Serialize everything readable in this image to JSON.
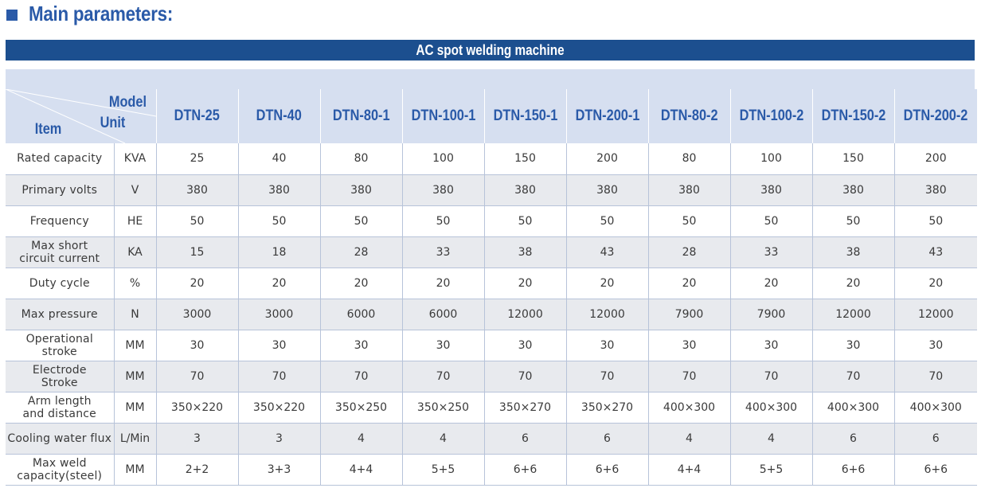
{
  "heading": "Main parameters:",
  "banner": "AC spot welding machine",
  "header": {
    "model_label": "Model",
    "unit_label": "Unit",
    "item_label": "Item",
    "models": [
      "DTN-25",
      "DTN-40",
      "DTN-80-1",
      "DTN-100-1",
      "DTN-150-1",
      "DTN-200-1",
      "DTN-80-2",
      "DTN-100-2",
      "DTN-150-2",
      "DTN-200-2"
    ]
  },
  "rows": [
    {
      "item": "Rated capacity",
      "unit": "KVA",
      "values": [
        "25",
        "40",
        "80",
        "100",
        "150",
        "200",
        "80",
        "100",
        "150",
        "200"
      ]
    },
    {
      "item": "Primary volts",
      "unit": "V",
      "values": [
        "380",
        "380",
        "380",
        "380",
        "380",
        "380",
        "380",
        "380",
        "380",
        "380"
      ]
    },
    {
      "item": "Frequency",
      "unit": "HE",
      "values": [
        "50",
        "50",
        "50",
        "50",
        "50",
        "50",
        "50",
        "50",
        "50",
        "50"
      ]
    },
    {
      "item": "Max short circuit current",
      "item_lines": [
        "Max short",
        "circuit current"
      ],
      "unit": "KA",
      "values": [
        "15",
        "18",
        "28",
        "33",
        "38",
        "43",
        "28",
        "33",
        "38",
        "43"
      ]
    },
    {
      "item": "Duty cycle",
      "unit": "%",
      "values": [
        "20",
        "20",
        "20",
        "20",
        "20",
        "20",
        "20",
        "20",
        "20",
        "20"
      ]
    },
    {
      "item": "Max pressure",
      "unit": "N",
      "values": [
        "3000",
        "3000",
        "6000",
        "6000",
        "12000",
        "12000",
        "7900",
        "7900",
        "12000",
        "12000"
      ]
    },
    {
      "item": "Operational stroke",
      "item_lines": [
        "Operational",
        "stroke"
      ],
      "unit": "MM",
      "values": [
        "30",
        "30",
        "30",
        "30",
        "30",
        "30",
        "30",
        "30",
        "30",
        "30"
      ]
    },
    {
      "item": "Electrode Stroke",
      "item_lines": [
        "Electrode",
        "Stroke"
      ],
      "unit": "MM",
      "values": [
        "70",
        "70",
        "70",
        "70",
        "70",
        "70",
        "70",
        "70",
        "70",
        "70"
      ]
    },
    {
      "item": "Arm length and distance",
      "item_lines": [
        "Arm length",
        "and distance"
      ],
      "unit": "MM",
      "values": [
        "350×220",
        "350×220",
        "350×250",
        "350×250",
        "350×270",
        "350×270",
        "400×300",
        "400×300",
        "400×300",
        "400×300"
      ]
    },
    {
      "item": "Cooling water flux",
      "unit": "L/Min",
      "values": [
        "3",
        "3",
        "4",
        "4",
        "6",
        "6",
        "4",
        "4",
        "6",
        "6"
      ]
    },
    {
      "item": "Max weld capacity(steel)",
      "item_lines": [
        "Max weld",
        "capacity(steel)"
      ],
      "unit": "MM",
      "values": [
        "2+2",
        "3+3",
        "4+4",
        "5+5",
        "6+6",
        "6+6",
        "4+4",
        "5+5",
        "6+6",
        "6+6"
      ]
    }
  ]
}
